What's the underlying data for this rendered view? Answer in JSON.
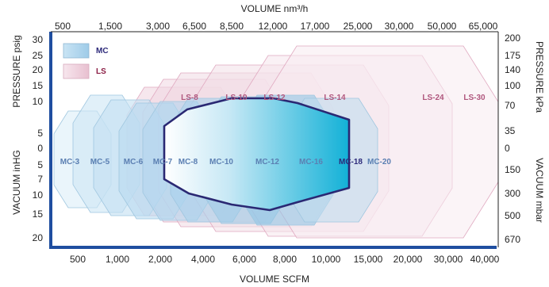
{
  "chart_data": {
    "type": "area",
    "x_axis_top": {
      "title": "VOLUME nm³/h",
      "ticks": [
        "500",
        "1,500",
        "3,000",
        "6,500",
        "8,500",
        "12,000",
        "17,000",
        "25,000",
        "30,000",
        "50,000",
        "65,000"
      ]
    },
    "x_axis_bottom": {
      "title": "VOLUME SCFM",
      "ticks": [
        "500",
        "1,000",
        "2,000",
        "4,000",
        "6,000",
        "8,000",
        "10,000",
        "15,000",
        "20,000",
        "30,000",
        "40,000"
      ]
    },
    "y_axis_left": {
      "pressure_title": "PRESSURE psig",
      "pressure_ticks": [
        "30",
        "25",
        "20",
        "15",
        "10",
        "5",
        "0"
      ],
      "vacuum_title": "VACUUM inHG",
      "vacuum_ticks": [
        "5",
        "7",
        "10",
        "15",
        "20"
      ]
    },
    "y_axis_right": {
      "pressure_title": "PRESSURE kPa",
      "pressure_ticks": [
        "200",
        "175",
        "140",
        "100",
        "70",
        "35",
        "0"
      ],
      "vacuum_title": "VACUUM mbar",
      "vacuum_ticks": [
        "150",
        "300",
        "500",
        "670"
      ]
    },
    "legend": [
      {
        "label": "MC",
        "color": "#a9d3ec"
      },
      {
        "label": "LS",
        "color": "#eec9d6"
      }
    ],
    "series_mc": [
      {
        "label": "MC-3",
        "color": "#dceef8"
      },
      {
        "label": "MC-5",
        "color": "#cde6f5"
      },
      {
        "label": "MC-6",
        "color": "#c3e0f2"
      },
      {
        "label": "MC-7",
        "color": "#b9dbf0"
      },
      {
        "label": "MC-8",
        "color": "#b2d6ee"
      },
      {
        "label": "MC-10",
        "color": "#a9d2ec"
      },
      {
        "label": "MC-12",
        "color": "#9ccbe8"
      },
      {
        "label": "MC-16",
        "color": "#92c6e6"
      },
      {
        "label": "MC-18",
        "color": "#18b3d8"
      },
      {
        "label": "MC-20",
        "color": "#bfdcee"
      }
    ],
    "series_ls": [
      {
        "label": "LS-8",
        "color": "#efd3de"
      },
      {
        "label": "LS-10",
        "color": "#f0d7e1"
      },
      {
        "label": "LS-12",
        "color": "#f1dbe4"
      },
      {
        "label": "LS-14",
        "color": "#f3e0e8"
      },
      {
        "label": "LS-24",
        "color": "#f6e6ec"
      },
      {
        "label": "LS-30",
        "color": "#f8ebf0"
      }
    ],
    "highlight": "MC-18",
    "label_colors": {
      "mc": "#5b7fb2",
      "ls": "#b0577e",
      "highlight": "#2d2a7a"
    }
  }
}
